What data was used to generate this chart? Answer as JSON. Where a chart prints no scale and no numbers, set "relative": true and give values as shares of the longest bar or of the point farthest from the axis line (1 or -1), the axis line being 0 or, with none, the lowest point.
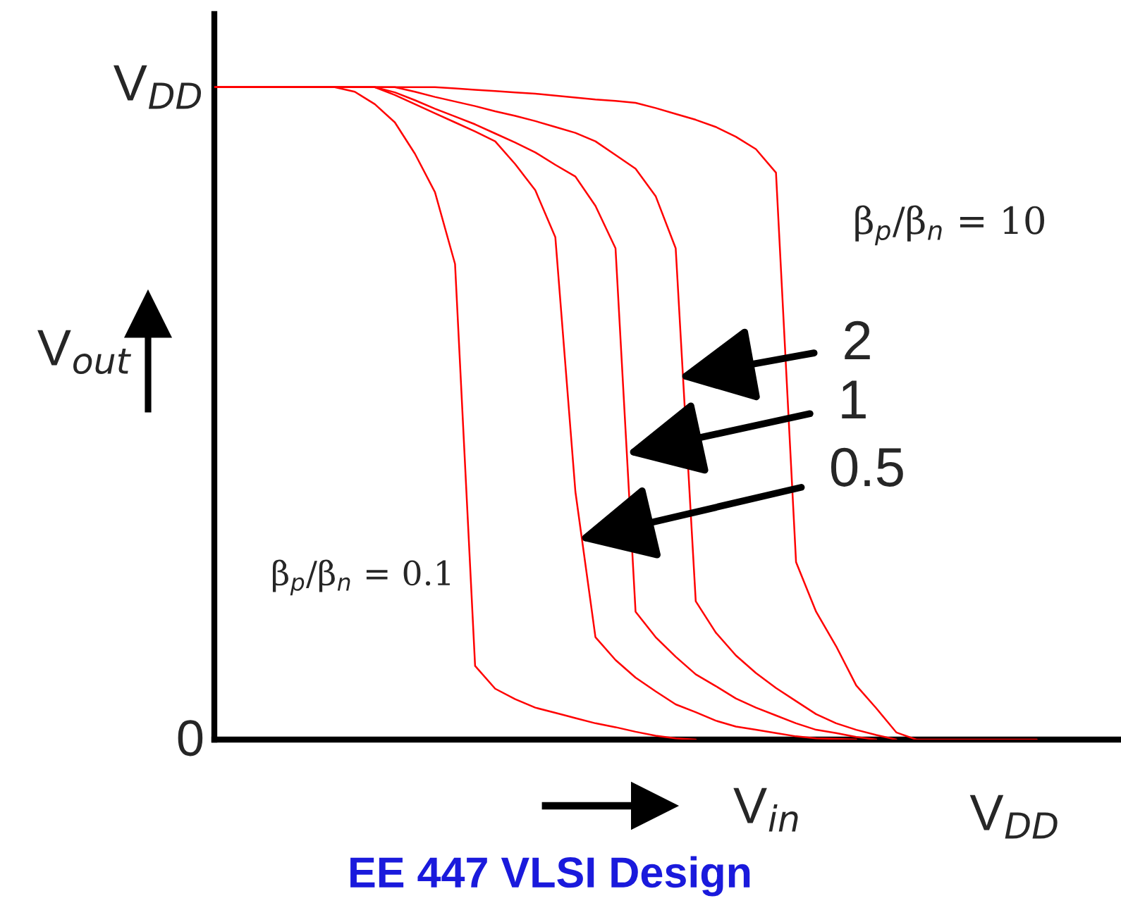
{
  "chart_data": {
    "type": "line",
    "xlabel": "V$_{in}$",
    "ylabel": "V$_{out}$",
    "categories": [
      null,
      null,
      null,
      null,
      null,
      null,
      null,
      null,
      null,
      null,
      null,
      null,
      null,
      null,
      null,
      null,
      null,
      null,
      null,
      null,
      null,
      null,
      null,
      null,
      null,
      null,
      null,
      null,
      null,
      null,
      null,
      null,
      null,
      null,
      null,
      null,
      null,
      null,
      null,
      null,
      null,
      null
    ],
    "series": [
      {
        "color": "#ff0000",
        "values": [
          1,
          1,
          1,
          1,
          1,
          1,
          1,
          0.993,
          0.974,
          0.946,
          0.898,
          0.839,
          0.729,
          0.113,
          0.078,
          0.062,
          0.049,
          0.041,
          0.033,
          0.025,
          0.019,
          0.012,
          0.006,
          0.002,
          0,
          null,
          null,
          null,
          null,
          null,
          null,
          null,
          null,
          null,
          null,
          null,
          null,
          null,
          null,
          null,
          null,
          null
        ]
      },
      {
        "color": "#ff0000",
        "values": [
          1,
          1,
          1,
          1,
          1,
          1,
          1,
          1,
          1,
          0.988,
          0.974,
          0.96,
          0.946,
          0.932,
          0.917,
          0.882,
          0.842,
          0.77,
          0.38,
          0.157,
          0.122,
          0.095,
          0.074,
          0.054,
          0.042,
          0.029,
          0.02,
          0.015,
          0.01,
          0.005,
          0.002,
          0.001,
          0,
          null,
          null,
          null,
          null,
          null,
          null,
          null,
          null,
          null
        ]
      },
      {
        "color": "#ff0000",
        "values": [
          1,
          1,
          1,
          1,
          1,
          1,
          1,
          1,
          1,
          0.992,
          0.98,
          0.967,
          0.955,
          0.943,
          0.929,
          0.915,
          0.9,
          0.881,
          0.863,
          0.818,
          0.753,
          0.196,
          0.157,
          0.127,
          0.1,
          0.082,
          0.063,
          0.049,
          0.037,
          0.025,
          0.015,
          0.01,
          0.004,
          0,
          null,
          null,
          null,
          null,
          null,
          null,
          null,
          null
        ]
      },
      {
        "color": "#ff0000",
        "values": [
          1,
          1,
          1,
          1,
          1,
          1,
          1,
          1,
          1,
          1,
          0.993,
          0.985,
          0.978,
          0.971,
          0.963,
          0.956,
          0.948,
          0.939,
          0.93,
          0.917,
          0.896,
          0.875,
          0.833,
          0.753,
          0.212,
          0.164,
          0.129,
          0.102,
          0.079,
          0.059,
          0.039,
          0.025,
          0.015,
          0.007,
          0,
          null,
          null,
          null,
          null,
          null,
          null,
          null
        ]
      },
      {
        "color": "#ff0000",
        "values": [
          1,
          1,
          1,
          1,
          1,
          1,
          1,
          1,
          1,
          1,
          1,
          1,
          0.998,
          0.996,
          0.994,
          0.992,
          0.99,
          0.987,
          0.984,
          0.981,
          0.979,
          0.976,
          0.968,
          0.959,
          0.95,
          0.939,
          0.924,
          0.905,
          0.869,
          0.272,
          0.196,
          0.143,
          0.083,
          0.048,
          0.011,
          0,
          0,
          0,
          0,
          0,
          0,
          0
        ]
      }
    ],
    "relative": true,
    "annotations": [
      "β$_{p}$/β$_{n}$ = 10",
      "2",
      "1",
      "0.5",
      "β$_{p}$/β$_{n}$ = 0.1",
      "EE 447 VLSI Design",
      "V$_{DD}$",
      "V$_{DD}$",
      "0"
    ],
    "grid": false,
    "legend": false,
    "marker": "none",
    "line_style": "solid"
  }
}
